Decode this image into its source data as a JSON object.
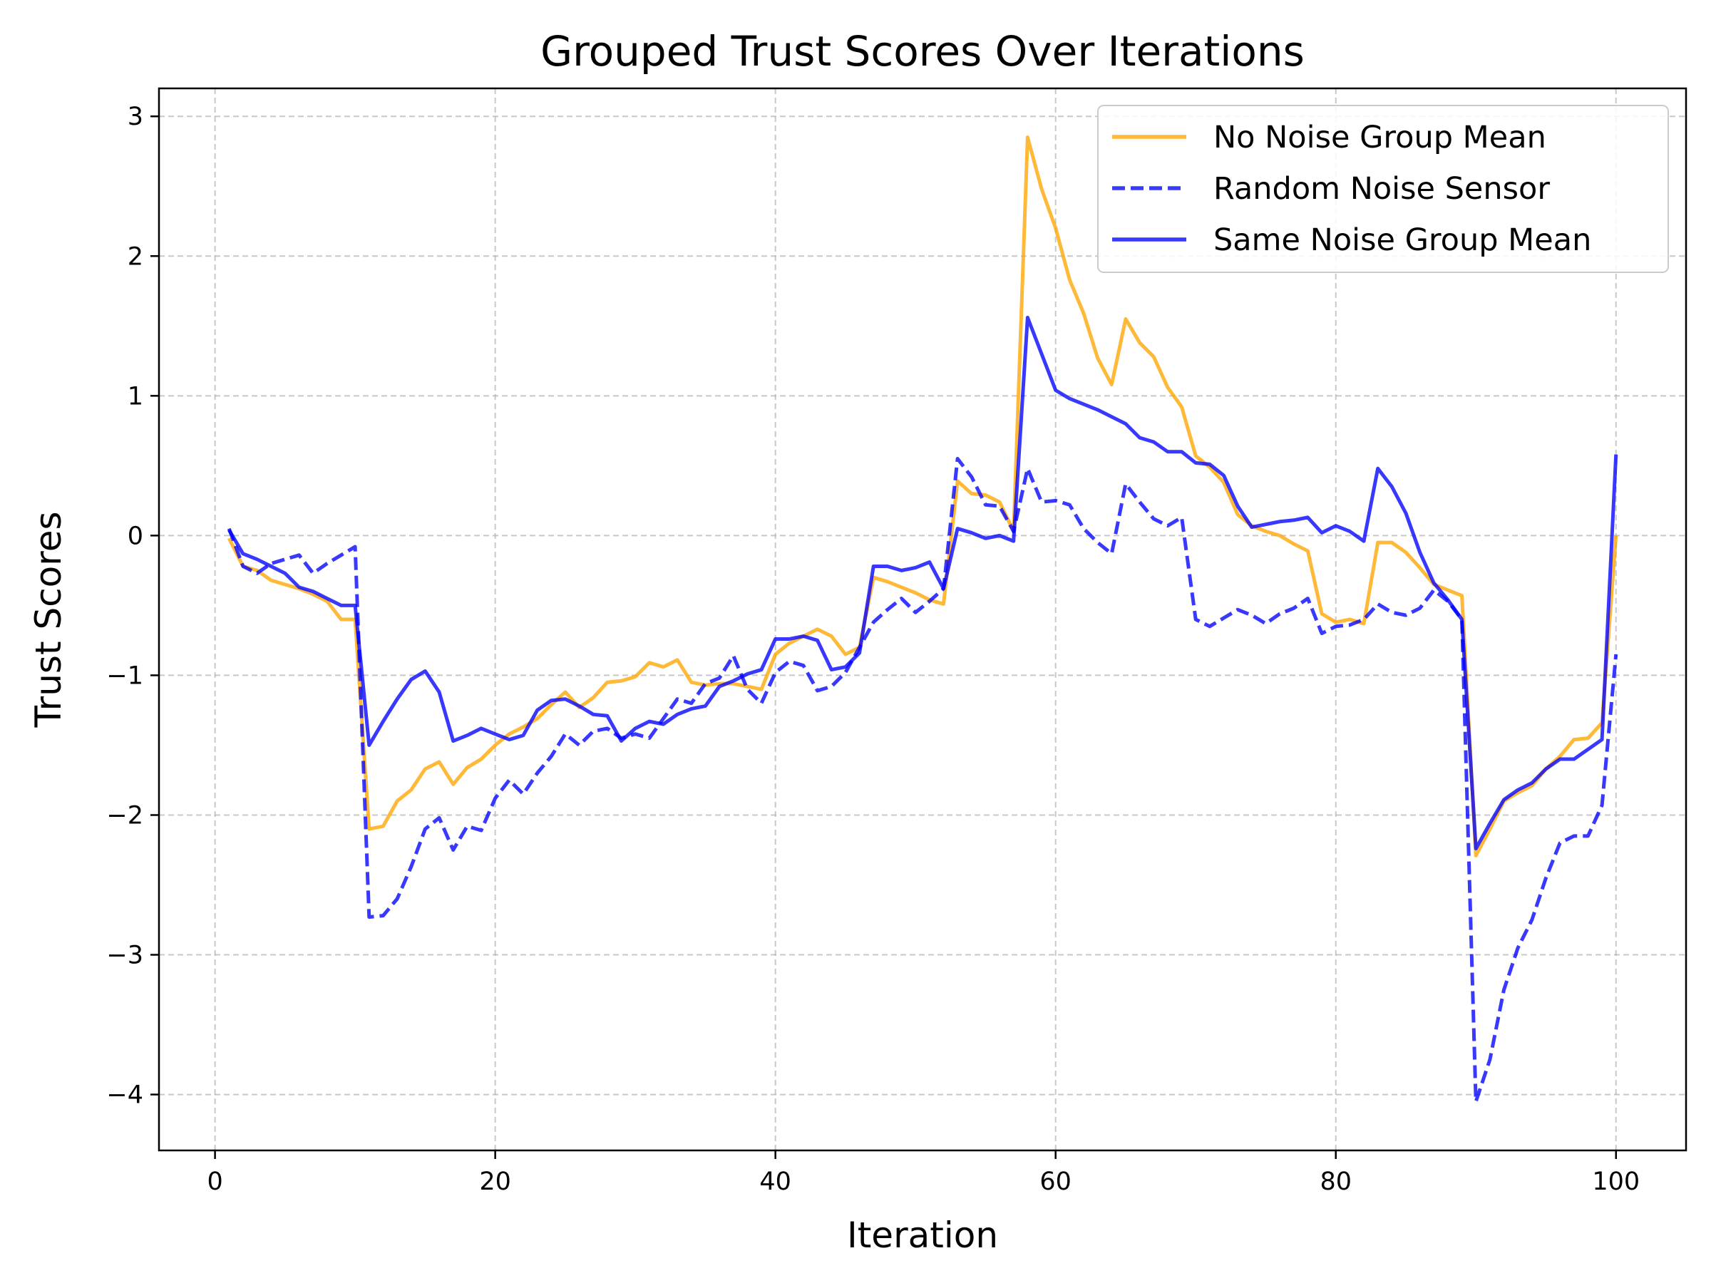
{
  "chart_data": {
    "type": "line",
    "title": "Grouped Trust Scores Over Iterations",
    "xlabel": "Iteration",
    "ylabel": "Trust Scores",
    "xlim": [
      -4,
      105
    ],
    "ylim": [
      -4.4,
      3.2
    ],
    "xticks": [
      0,
      20,
      40,
      60,
      80,
      100
    ],
    "yticks": [
      3,
      2,
      1,
      0,
      -1,
      -2,
      -3,
      -4
    ],
    "grid": true,
    "legend_position": "top-right",
    "x": [
      1,
      2,
      3,
      4,
      5,
      6,
      7,
      8,
      9,
      10,
      11,
      12,
      13,
      14,
      15,
      16,
      17,
      18,
      19,
      20,
      21,
      22,
      23,
      24,
      25,
      26,
      27,
      28,
      29,
      30,
      31,
      32,
      33,
      34,
      35,
      36,
      37,
      38,
      39,
      40,
      41,
      42,
      43,
      44,
      45,
      46,
      47,
      48,
      49,
      50,
      51,
      52,
      53,
      54,
      55,
      56,
      57,
      58,
      59,
      60,
      61,
      62,
      63,
      64,
      65,
      66,
      67,
      68,
      69,
      70,
      71,
      72,
      73,
      74,
      75,
      76,
      77,
      78,
      79,
      80,
      81,
      82,
      83,
      84,
      85,
      86,
      87,
      88,
      89,
      90,
      91,
      92,
      93,
      94,
      95,
      96,
      97,
      98,
      99,
      100
    ],
    "series": [
      {
        "name": "No Noise Group Mean",
        "color": "#FFA500",
        "style": "solid",
        "values": [
          -0.02,
          -0.22,
          -0.25,
          -0.32,
          -0.35,
          -0.38,
          -0.42,
          -0.47,
          -0.6,
          -0.6,
          -2.1,
          -2.08,
          -1.9,
          -1.82,
          -1.67,
          -1.62,
          -1.78,
          -1.66,
          -1.6,
          -1.5,
          -1.42,
          -1.37,
          -1.31,
          -1.21,
          -1.12,
          -1.23,
          -1.16,
          -1.05,
          -1.04,
          -1.01,
          -0.91,
          -0.94,
          -0.89,
          -1.05,
          -1.07,
          -1.06,
          -1.06,
          -1.08,
          -1.1,
          -0.85,
          -0.77,
          -0.72,
          -0.67,
          -0.72,
          -0.85,
          -0.8,
          -0.3,
          -0.33,
          -0.37,
          -0.41,
          -0.46,
          -0.49,
          0.39,
          0.3,
          0.29,
          0.24,
          0.03,
          2.85,
          2.48,
          2.2,
          1.83,
          1.59,
          1.27,
          1.08,
          1.55,
          1.38,
          1.28,
          1.06,
          0.92,
          0.57,
          0.49,
          0.38,
          0.15,
          0.07,
          0.03,
          0.0,
          -0.06,
          -0.11,
          -0.56,
          -0.62,
          -0.6,
          -0.63,
          -0.05,
          -0.05,
          -0.12,
          -0.23,
          -0.35,
          -0.39,
          -0.43,
          -2.29,
          -2.1,
          -1.9,
          -1.84,
          -1.79,
          -1.67,
          -1.58,
          -1.46,
          -1.45,
          -1.34,
          0.0
        ]
      },
      {
        "name": "Random Noise Sensor",
        "color": "#0000FF",
        "style": "dashed",
        "values": [
          0.05,
          -0.22,
          -0.27,
          -0.2,
          -0.17,
          -0.14,
          -0.27,
          -0.2,
          -0.14,
          -0.08,
          -2.73,
          -2.72,
          -2.6,
          -2.37,
          -2.1,
          -2.02,
          -2.25,
          -2.08,
          -2.11,
          -1.88,
          -1.75,
          -1.85,
          -1.7,
          -1.58,
          -1.42,
          -1.5,
          -1.4,
          -1.38,
          -1.45,
          -1.42,
          -1.45,
          -1.31,
          -1.17,
          -1.2,
          -1.06,
          -1.02,
          -0.86,
          -1.1,
          -1.2,
          -0.98,
          -0.9,
          -0.93,
          -1.11,
          -1.08,
          -0.98,
          -0.8,
          -0.62,
          -0.53,
          -0.45,
          -0.55,
          -0.47,
          -0.38,
          0.55,
          0.42,
          0.22,
          0.21,
          0.03,
          0.48,
          0.24,
          0.25,
          0.22,
          0.05,
          -0.05,
          -0.13,
          0.37,
          0.24,
          0.12,
          0.07,
          0.13,
          -0.6,
          -0.65,
          -0.59,
          -0.53,
          -0.57,
          -0.63,
          -0.56,
          -0.52,
          -0.45,
          -0.7,
          -0.65,
          -0.64,
          -0.6,
          -0.49,
          -0.55,
          -0.57,
          -0.52,
          -0.39,
          -0.47,
          -0.6,
          -4.05,
          -3.75,
          -3.25,
          -2.95,
          -2.75,
          -2.45,
          -2.2,
          -2.15,
          -2.15,
          -1.93,
          -0.85
        ]
      },
      {
        "name": "Same Noise Group Mean",
        "color": "#0000FF",
        "style": "solid",
        "values": [
          0.04,
          -0.13,
          -0.17,
          -0.22,
          -0.27,
          -0.37,
          -0.4,
          -0.45,
          -0.5,
          -0.5,
          -1.5,
          -1.33,
          -1.17,
          -1.03,
          -0.97,
          -1.12,
          -1.47,
          -1.43,
          -1.38,
          -1.42,
          -1.46,
          -1.43,
          -1.25,
          -1.18,
          -1.17,
          -1.22,
          -1.28,
          -1.29,
          -1.47,
          -1.38,
          -1.33,
          -1.35,
          -1.28,
          -1.24,
          -1.22,
          -1.08,
          -1.04,
          -0.99,
          -0.96,
          -0.74,
          -0.74,
          -0.72,
          -0.75,
          -0.96,
          -0.94,
          -0.84,
          -0.22,
          -0.22,
          -0.25,
          -0.23,
          -0.19,
          -0.38,
          0.05,
          0.02,
          -0.02,
          0.0,
          -0.04,
          1.56,
          1.3,
          1.04,
          0.98,
          0.94,
          0.9,
          0.85,
          0.8,
          0.7,
          0.67,
          0.6,
          0.6,
          0.52,
          0.51,
          0.43,
          0.21,
          0.06,
          0.08,
          0.1,
          0.11,
          0.13,
          0.02,
          0.07,
          0.03,
          -0.04,
          0.48,
          0.35,
          0.16,
          -0.12,
          -0.34,
          -0.46,
          -0.6,
          -2.24,
          -2.06,
          -1.89,
          -1.82,
          -1.77,
          -1.67,
          -1.6,
          -1.6,
          -1.53,
          -1.46,
          0.58
        ]
      }
    ]
  }
}
